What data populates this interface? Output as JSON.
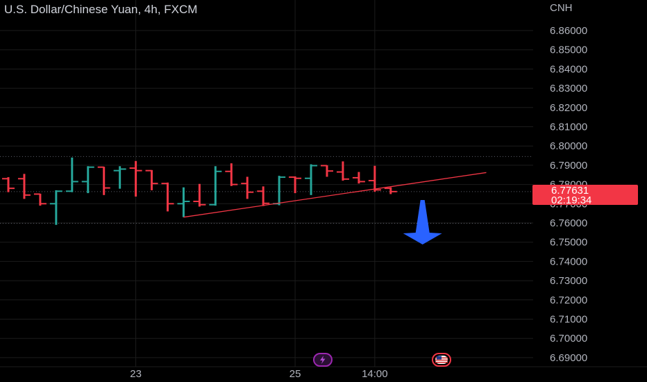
{
  "header": {
    "title": "U.S. Dollar/Chinese Yuan, 4h, FXCM",
    "currency": "CNH"
  },
  "price_badge": {
    "price": "6.77631",
    "countdown": "02:19:34",
    "color": "#f23645"
  },
  "events": [
    {
      "name": "lightning-event-icon",
      "color": "#9c27b0"
    },
    {
      "name": "us-flag-event-icon",
      "color": "#f23645"
    }
  ],
  "colors": {
    "up": "#26a69a",
    "down": "#f23645",
    "trendline": "#f23645",
    "arrow": "#2962ff",
    "grid": "#1c1c1c",
    "background": "#000000"
  },
  "chart_data": {
    "type": "ohlc",
    "title": "U.S. Dollar/Chinese Yuan, 4h, FXCM",
    "yunit": "CNH",
    "ylim": [
      6.6852,
      6.8685
    ],
    "y_ticks": [
      "6.86000",
      "6.85000",
      "6.84000",
      "6.83000",
      "6.82000",
      "6.81000",
      "6.80000",
      "6.79000",
      "6.78000",
      "6.77000",
      "6.76000",
      "6.75000",
      "6.74000",
      "6.73000",
      "6.72000",
      "6.71000",
      "6.70000",
      "6.69000"
    ],
    "x_ticks": [
      {
        "label": "23",
        "bar": 8
      },
      {
        "label": "25",
        "bar": 18
      },
      {
        "label": "14:00",
        "bar": 23
      }
    ],
    "bars": [
      {
        "o": 6.783,
        "h": 6.7838,
        "l": 6.776,
        "c": 6.778
      },
      {
        "o": 6.783,
        "h": 6.7855,
        "l": 6.7725,
        "c": 6.7745
      },
      {
        "o": 6.775,
        "h": 6.7752,
        "l": 6.769,
        "c": 6.77
      },
      {
        "o": 6.77,
        "h": 6.777,
        "l": 6.759,
        "c": 6.7765
      },
      {
        "o": 6.7765,
        "h": 6.794,
        "l": 6.776,
        "c": 6.7815
      },
      {
        "o": 6.7815,
        "h": 6.7895,
        "l": 6.7755,
        "c": 6.789
      },
      {
        "o": 6.789,
        "h": 6.7892,
        "l": 6.7745,
        "c": 6.7782
      },
      {
        "o": 6.7872,
        "h": 6.7895,
        "l": 6.7778,
        "c": 6.788
      },
      {
        "o": 6.7885,
        "h": 6.7922,
        "l": 6.7737,
        "c": 6.7872
      },
      {
        "o": 6.7872,
        "h": 6.7875,
        "l": 6.777,
        "c": 6.7805
      },
      {
        "o": 6.7805,
        "h": 6.781,
        "l": 6.766,
        "c": 6.77
      },
      {
        "o": 6.77,
        "h": 6.7785,
        "l": 6.763,
        "c": 6.7712
      },
      {
        "o": 6.7712,
        "h": 6.7803,
        "l": 6.7685,
        "c": 6.7695
      },
      {
        "o": 6.7695,
        "h": 6.7895,
        "l": 6.769,
        "c": 6.7868
      },
      {
        "o": 6.7868,
        "h": 6.791,
        "l": 6.7792,
        "c": 6.78
      },
      {
        "o": 6.7805,
        "h": 6.784,
        "l": 6.7725,
        "c": 6.776
      },
      {
        "o": 6.7765,
        "h": 6.779,
        "l": 6.7688,
        "c": 6.7702
      },
      {
        "o": 6.77,
        "h": 6.7845,
        "l": 6.7692,
        "c": 6.7838
      },
      {
        "o": 6.7838,
        "h": 6.7842,
        "l": 6.7755,
        "c": 6.7832
      },
      {
        "o": 6.7832,
        "h": 6.7905,
        "l": 6.7745,
        "c": 6.7898
      },
      {
        "o": 6.7898,
        "h": 6.79,
        "l": 6.784,
        "c": 6.787
      },
      {
        "o": 6.7865,
        "h": 6.792,
        "l": 6.782,
        "c": 6.7828
      },
      {
        "o": 6.7835,
        "h": 6.7865,
        "l": 6.7805,
        "c": 6.7815
      },
      {
        "o": 6.782,
        "h": 6.7897,
        "l": 6.7762,
        "c": 6.7772
      },
      {
        "o": 6.778,
        "h": 6.7785,
        "l": 6.775,
        "c": 6.7763
      }
    ],
    "trendline": {
      "from": {
        "bar": 11,
        "y": 6.763
      },
      "to": {
        "bar": 30,
        "y": 6.7862
      }
    },
    "horizontal_levels": [
      6.7945,
      6.7763,
      6.7598
    ],
    "arrow": {
      "direction": "down",
      "bar": 26
    },
    "grid": true
  }
}
